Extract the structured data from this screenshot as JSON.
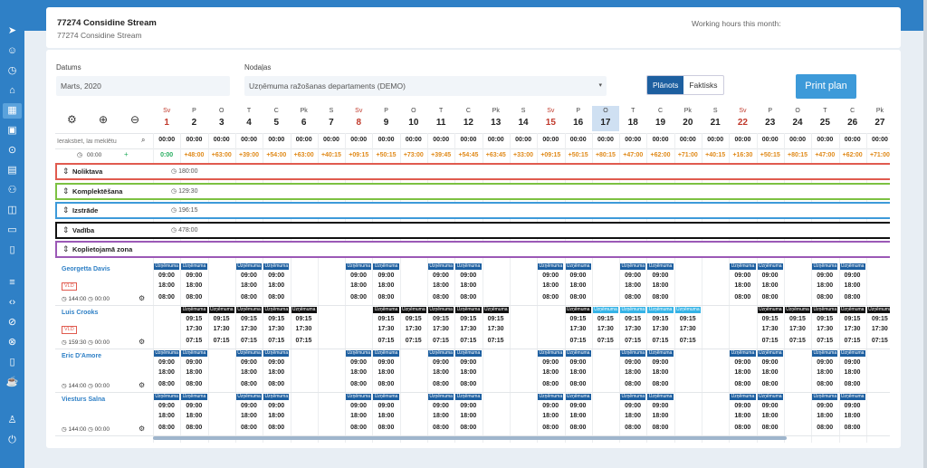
{
  "header": {
    "title": "77274 Considine Stream",
    "subtitle": "77274 Considine Stream",
    "working_hours_label": "Working hours this month:"
  },
  "filters": {
    "date_label": "Datums",
    "date_value": "Marts, 2020",
    "dept_label": "Nodaļas",
    "dept_value": "Uzņēmuma ražošanas departaments (DEMO)"
  },
  "toggle": {
    "planned": "Plānots",
    "actual": "Faktisks"
  },
  "print_label": "Print plan",
  "search_placeholder": "Ierakstiet, lai meklētu",
  "summary": {
    "total": "00:00",
    "overtime": "0:00"
  },
  "days": [
    {
      "dow": "Sv",
      "num": "1",
      "hol": true,
      "tot": "00:00",
      "ot": "0:00"
    },
    {
      "dow": "P",
      "num": "2",
      "tot": "00:00",
      "ot": "+48:00"
    },
    {
      "dow": "O",
      "num": "3",
      "tot": "00:00",
      "ot": "+63:00"
    },
    {
      "dow": "T",
      "num": "4",
      "tot": "00:00",
      "ot": "+39:00"
    },
    {
      "dow": "C",
      "num": "5",
      "tot": "00:00",
      "ot": "+54:00"
    },
    {
      "dow": "Pk",
      "num": "6",
      "tot": "00:00",
      "ot": "+63:00"
    },
    {
      "dow": "S",
      "num": "7",
      "tot": "00:00",
      "ot": "+40:15"
    },
    {
      "dow": "Sv",
      "num": "8",
      "hol": true,
      "tot": "00:00",
      "ot": "+09:15"
    },
    {
      "dow": "P",
      "num": "9",
      "tot": "00:00",
      "ot": "+50:15"
    },
    {
      "dow": "O",
      "num": "10",
      "tot": "00:00",
      "ot": "+73:00"
    },
    {
      "dow": "T",
      "num": "11",
      "tot": "00:00",
      "ot": "+39:45"
    },
    {
      "dow": "C",
      "num": "12",
      "tot": "00:00",
      "ot": "+54:45"
    },
    {
      "dow": "Pk",
      "num": "13",
      "tot": "00:00",
      "ot": "+63:45"
    },
    {
      "dow": "S",
      "num": "14",
      "tot": "00:00",
      "ot": "+33:00"
    },
    {
      "dow": "Sv",
      "num": "15",
      "hol": true,
      "tot": "00:00",
      "ot": "+09:15"
    },
    {
      "dow": "P",
      "num": "16",
      "tot": "00:00",
      "ot": "+50:15"
    },
    {
      "dow": "O",
      "num": "17",
      "today": true,
      "tot": "00:00",
      "ot": "+80:15"
    },
    {
      "dow": "T",
      "num": "18",
      "tot": "00:00",
      "ot": "+47:00"
    },
    {
      "dow": "C",
      "num": "19",
      "tot": "00:00",
      "ot": "+62:00"
    },
    {
      "dow": "Pk",
      "num": "20",
      "tot": "00:00",
      "ot": "+71:00"
    },
    {
      "dow": "S",
      "num": "21",
      "tot": "00:00",
      "ot": "+40:15"
    },
    {
      "dow": "Sv",
      "num": "22",
      "hol": true,
      "tot": "00:00",
      "ot": "+16:30"
    },
    {
      "dow": "P",
      "num": "23",
      "tot": "00:00",
      "ot": "+50:15"
    },
    {
      "dow": "O",
      "num": "24",
      "tot": "00:00",
      "ot": "+80:15"
    },
    {
      "dow": "T",
      "num": "25",
      "tot": "00:00",
      "ot": "+47:00"
    },
    {
      "dow": "C",
      "num": "26",
      "tot": "00:00",
      "ot": "+62:00"
    },
    {
      "dow": "Pk",
      "num": "27",
      "tot": "00:00",
      "ot": "+71:00"
    }
  ],
  "sections": [
    {
      "name": "Noliktava",
      "hours": "180:00",
      "color": "#e05b4f"
    },
    {
      "name": "Komplektēšana",
      "hours": "129:30",
      "color": "#7cc142"
    },
    {
      "name": "Izstrāde",
      "hours": "196:15",
      "color": "#3d9ad9"
    },
    {
      "name": "Vadība",
      "hours": "478:00",
      "color": "#111111"
    },
    {
      "name": "Koplietojamā zona",
      "hours": "",
      "color": "#9b59b6"
    }
  ],
  "shift_tag": "Uzņēmuma",
  "employees": [
    {
      "name": "Georgetta Davis",
      "vld": "VLD",
      "hours": "144:00",
      "extra": "00:00",
      "shift": {
        "start": "09:00",
        "end": "18:00",
        "dur": "08:00"
      },
      "days": [
        1,
        2,
        4,
        5,
        8,
        9,
        11,
        12,
        15,
        16,
        18,
        19,
        22,
        23,
        25,
        26
      ]
    },
    {
      "name": "Luis Crooks",
      "vld": "VLD",
      "hours": "159:30",
      "extra": "00:00",
      "shift": {
        "start": "09:15",
        "end": "17:30",
        "dur": "07:15"
      },
      "days": [
        2,
        3,
        4,
        5,
        6,
        9,
        10,
        11,
        12,
        13,
        16,
        17,
        18,
        19,
        20,
        23,
        24,
        25,
        26,
        27
      ]
    },
    {
      "name": "Eric D'Amore",
      "vld": "",
      "hours": "144:00",
      "extra": "00:00",
      "shift": {
        "start": "09:00",
        "end": "18:00",
        "dur": "08:00"
      },
      "days": [
        1,
        2,
        4,
        5,
        8,
        9,
        11,
        12,
        15,
        16,
        18,
        19,
        22,
        23,
        25,
        26
      ]
    },
    {
      "name": "Viesturs Salna",
      "vld": "",
      "hours": "144:00",
      "extra": "00:00",
      "shift": {
        "start": "09:00",
        "end": "18:00",
        "dur": "08:00"
      },
      "days": [
        1,
        2,
        4,
        5,
        8,
        9,
        11,
        12,
        15,
        16,
        18,
        19,
        22,
        23,
        25,
        26
      ]
    }
  ]
}
